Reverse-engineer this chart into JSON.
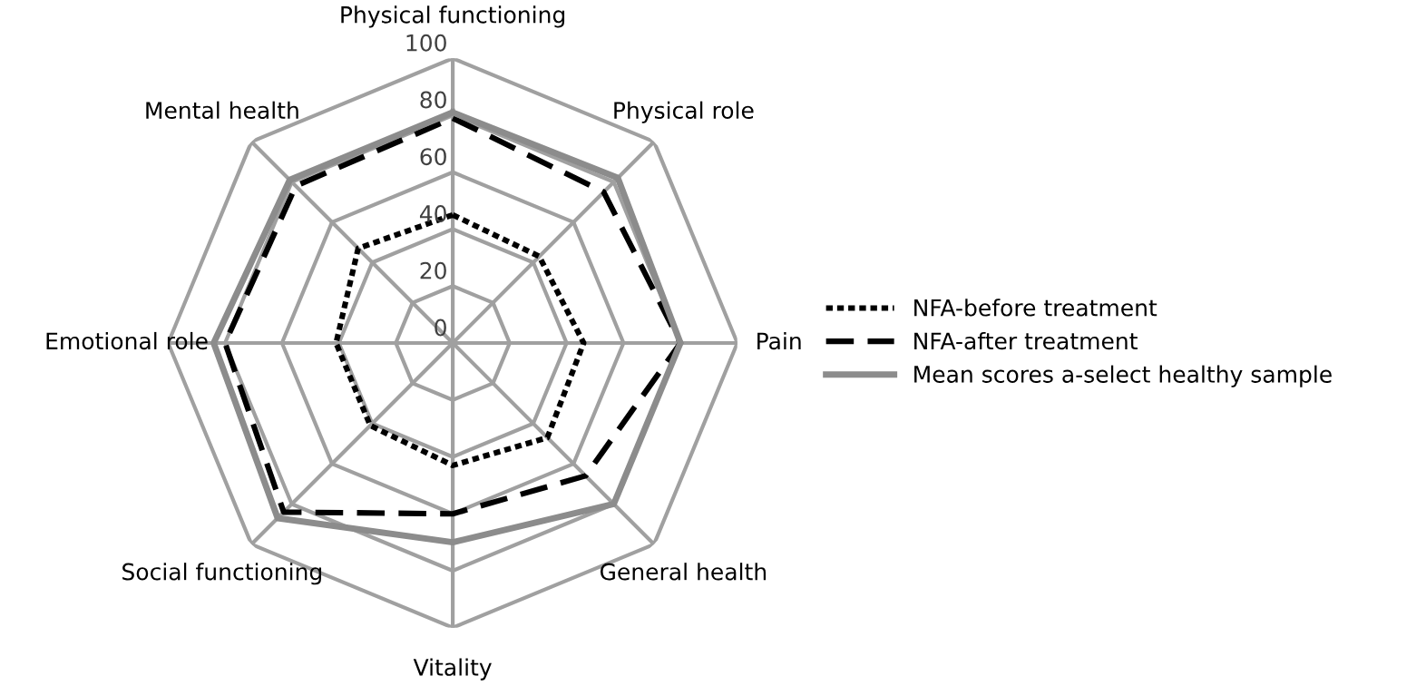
{
  "chart_data": {
    "type": "radar",
    "categories": [
      "Physical functioning",
      "Physical role",
      "Pain",
      "General health",
      "Vitality",
      "Social functioning",
      "Emotional role",
      "Mental health"
    ],
    "series": [
      {
        "name": "NFA-before treatment",
        "color": "#000000",
        "line_style": "dotted",
        "values": [
          45,
          43,
          46,
          47,
          43,
          41,
          41,
          47
        ]
      },
      {
        "name": "NFA-after treatment",
        "color": "#000000",
        "line_style": "dashed",
        "values": [
          79,
          75,
          80,
          66,
          60,
          84,
          80,
          78
        ]
      },
      {
        "name": "Mean scores a-select healthy sample",
        "color": "#8c8c8c",
        "line_style": "solid",
        "values": [
          81,
          82,
          80,
          80,
          70,
          87,
          84,
          81
        ]
      }
    ],
    "ylim": [
      0,
      100
    ],
    "yticks": [
      0,
      20,
      40,
      60,
      80,
      100
    ],
    "grid": true,
    "legend": "right",
    "marker": "none"
  }
}
